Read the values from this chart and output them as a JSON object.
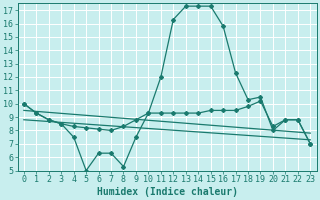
{
  "xlabel": "Humidex (Indice chaleur)",
  "background_color": "#c8eeee",
  "grid_color": "#ffffff",
  "line_color": "#1a7a6e",
  "xlim": [
    -0.5,
    23.5
  ],
  "ylim": [
    5,
    17.5
  ],
  "yticks": [
    5,
    6,
    7,
    8,
    9,
    10,
    11,
    12,
    13,
    14,
    15,
    16,
    17
  ],
  "xticks": [
    0,
    1,
    2,
    3,
    4,
    5,
    6,
    7,
    8,
    9,
    10,
    11,
    12,
    13,
    14,
    15,
    16,
    17,
    18,
    19,
    20,
    21,
    22,
    23
  ],
  "series": [
    {
      "x": [
        0,
        1,
        2,
        3,
        4,
        5,
        6,
        7,
        8,
        9,
        10,
        11,
        12,
        13,
        14,
        15,
        16,
        17,
        18,
        19,
        20,
        21,
        22,
        23
      ],
      "y": [
        10,
        9.3,
        8.8,
        8.5,
        7.5,
        5.0,
        6.3,
        6.3,
        5.3,
        7.5,
        9.3,
        12.0,
        16.3,
        17.3,
        17.3,
        17.3,
        15.8,
        12.3,
        10.3,
        10.5,
        8.0,
        8.8,
        8.8,
        7.0
      ],
      "marker": true
    },
    {
      "x": [
        0,
        1,
        2,
        3,
        4,
        5,
        6,
        7,
        8,
        9,
        10,
        11,
        12,
        13,
        14,
        15,
        16,
        17,
        18,
        19,
        20,
        21,
        22,
        23
      ],
      "y": [
        10,
        9.3,
        8.8,
        8.5,
        8.3,
        8.2,
        8.1,
        8.0,
        8.3,
        8.8,
        9.3,
        9.3,
        9.3,
        9.3,
        9.3,
        9.5,
        9.5,
        9.5,
        9.8,
        10.2,
        8.3,
        8.8,
        8.8,
        7.0
      ],
      "marker": true
    },
    {
      "x": [
        0,
        23
      ],
      "y": [
        9.5,
        7.8
      ],
      "marker": false
    },
    {
      "x": [
        0,
        23
      ],
      "y": [
        8.8,
        7.3
      ],
      "marker": false
    }
  ],
  "tick_fontsize": 6,
  "xlabel_fontsize": 7,
  "linewidth": 0.9,
  "markersize": 2.0
}
